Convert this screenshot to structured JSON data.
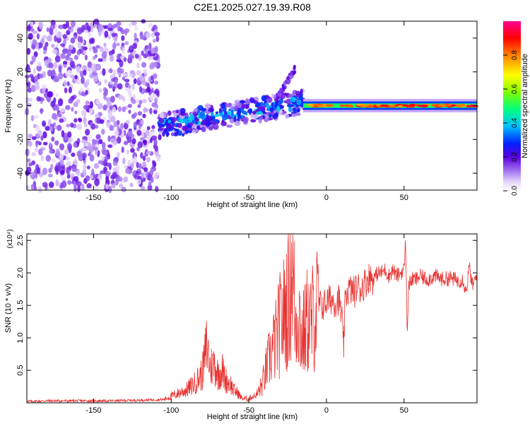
{
  "title": "C2E1.2025.027.19.39.R08",
  "colors": {
    "snr_line": "#e8312f",
    "axis": "#000000"
  },
  "chart_data": [
    {
      "type": "heatmap",
      "xlabel": "Height of straight line (km)",
      "ylabel": "Frequency (Hz)",
      "xlim": [
        -193,
        97
      ],
      "ylim": [
        -50,
        50
      ],
      "x_ticks": [
        -150,
        -100,
        -50,
        0,
        50
      ],
      "y_ticks": [
        -40,
        -20,
        0,
        20,
        40
      ],
      "colorbar": {
        "label": "Normalized spectral amplitude",
        "range": [
          0,
          1
        ],
        "ticks": [
          "0.0",
          "0.2",
          "0.4",
          "0.6",
          "0.8"
        ],
        "tick_values": [
          0.0,
          0.2,
          0.4,
          0.6,
          0.8
        ],
        "colormap": "rainbow (white-violet-purple-blue-cyan-green-yellow-orange-red-magenta)"
      },
      "features": [
        {
          "x_range": [
            -193,
            -108
          ],
          "y_range": [
            -50,
            50
          ],
          "amplitude": 0.05,
          "description": "noise"
        },
        {
          "x_range": [
            -108,
            -15
          ],
          "y_start": -12,
          "y_end": 2,
          "amplitude": 0.3,
          "description": "rising band"
        },
        {
          "x_range": [
            -32,
            -20
          ],
          "y_start": 4,
          "y_end": 22,
          "amplitude": 0.15,
          "description": "upper branch"
        },
        {
          "x_range": [
            -15,
            97
          ],
          "y": 0,
          "amplitude": 0.9,
          "description": "strong constant line"
        }
      ]
    },
    {
      "type": "line",
      "xlabel": "Height of straight line (km)",
      "ylabel": "SNR (10 * v/v)",
      "y_multiplier": "(x10⁴)",
      "xlim": [
        -193,
        97
      ],
      "ylim": [
        0,
        2.6
      ],
      "x_ticks": [
        -150,
        -100,
        -50,
        0,
        50
      ],
      "y_ticks": [
        "0.5",
        "1.0",
        "1.5",
        "2.0",
        "2.5"
      ],
      "y_tick_values": [
        0.5,
        1.0,
        1.5,
        2.0,
        2.5
      ],
      "series": [
        {
          "x": [
            -193,
            -180,
            -160,
            -140,
            -120,
            -105,
            -100,
            -95,
            -90,
            -85,
            -80,
            -77,
            -75,
            -72,
            -70,
            -67,
            -65,
            -62,
            -60,
            -57,
            -55,
            -52,
            -50,
            -45,
            -42,
            -40,
            -38,
            -35,
            -32,
            -30,
            -28,
            -26,
            -24,
            -22,
            -20,
            -18,
            -16,
            -14,
            -12,
            -10,
            -8,
            -5,
            -2,
            0,
            3,
            6,
            8,
            10,
            11,
            12,
            13,
            15,
            18,
            20,
            22,
            25,
            28,
            30,
            33,
            35,
            38,
            40,
            43,
            45,
            48,
            50,
            51,
            52,
            53,
            55,
            58,
            60,
            65,
            70,
            75,
            80,
            85,
            88,
            90,
            92,
            94,
            96,
            97
          ],
          "y": [
            0.02,
            0.03,
            0.03,
            0.03,
            0.04,
            0.05,
            0.1,
            0.15,
            0.2,
            0.3,
            0.45,
            0.9,
            0.55,
            0.6,
            0.45,
            0.5,
            0.35,
            0.3,
            0.2,
            0.15,
            0.08,
            0.06,
            0.07,
            0.12,
            0.25,
            0.4,
            0.6,
            0.8,
            1.0,
            1.2,
            1.3,
            1.5,
            1.6,
            2.2,
            1.2,
            1.5,
            1.0,
            1.1,
            1.3,
            1.2,
            1.4,
            1.5,
            1.5,
            1.55,
            1.6,
            1.55,
            1.6,
            1.3,
            0.8,
            1.5,
            1.7,
            1.75,
            1.7,
            1.8,
            1.75,
            1.85,
            1.95,
            1.9,
            2.0,
            2.0,
            2.05,
            1.95,
            2.05,
            1.95,
            2.0,
            2.05,
            2.5,
            1.1,
            1.8,
            1.9,
            1.9,
            1.95,
            1.9,
            1.95,
            1.9,
            1.92,
            1.88,
            1.9,
            1.7,
            2.1,
            1.8,
            1.9,
            1.95
          ]
        }
      ]
    }
  ]
}
